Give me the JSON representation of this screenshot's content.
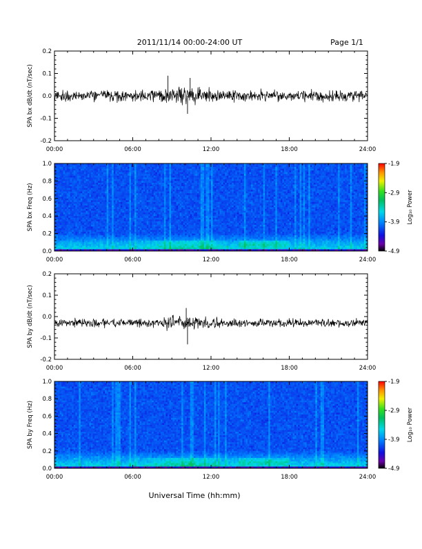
{
  "header": {
    "title": "2011/11/14  00:00-24:00 UT",
    "page": "Page 1/1"
  },
  "footer": {
    "xlabel": "Universal Time (hh:mm)"
  },
  "chart_data": [
    {
      "type": "line",
      "ylabel": "SPA bx dB/dt (nT/sec)",
      "xlim": [
        0,
        24
      ],
      "ylim": [
        -0.2,
        0.2
      ],
      "x_ticks": [
        "00:00",
        "06:00",
        "12:00",
        "18:00",
        "24:00"
      ],
      "y_ticks": [
        "0.2",
        "0.1",
        "0.0",
        "-0.1",
        "-0.2"
      ],
      "baseline": 0.0,
      "noise_amplitude": 0.025,
      "peaks": [
        {
          "x": 8.7,
          "y": 0.09
        },
        {
          "x": 10.4,
          "y": 0.08
        },
        {
          "x": 10.2,
          "y": -0.08
        }
      ]
    },
    {
      "type": "heatmap",
      "ylabel": "SPA bx Freq (Hz)",
      "xlim": [
        0,
        24
      ],
      "ylim": [
        0.0,
        1.0
      ],
      "x_ticks": [
        "00:00",
        "06:00",
        "12:00",
        "18:00",
        "24:00"
      ],
      "y_ticks": [
        "1.0",
        "0.8",
        "0.6",
        "0.4",
        "0.2",
        "0.0"
      ],
      "colorbar": {
        "label": "Log₁₀ Power",
        "range": [
          -4.9,
          -1.9
        ],
        "ticks": [
          "-1.9",
          "-2.9",
          "-3.9",
          "-4.9"
        ]
      }
    },
    {
      "type": "line",
      "ylabel": "SPA by dB/dt (nT/sec)",
      "xlim": [
        0,
        24
      ],
      "ylim": [
        -0.2,
        0.2
      ],
      "x_ticks": [
        "00:00",
        "06:00",
        "12:00",
        "18:00",
        "24:00"
      ],
      "y_ticks": [
        "0.2",
        "0.1",
        "0.0",
        "-0.1",
        "-0.2"
      ],
      "baseline": -0.03,
      "noise_amplitude": 0.02,
      "peaks": [
        {
          "x": 10.2,
          "y": -0.13
        },
        {
          "x": 10.1,
          "y": 0.04
        }
      ]
    },
    {
      "type": "heatmap",
      "ylabel": "SPA by Freq (Hz)",
      "xlim": [
        0,
        24
      ],
      "ylim": [
        0.0,
        1.0
      ],
      "x_ticks": [
        "00:00",
        "06:00",
        "12:00",
        "18:00",
        "24:00"
      ],
      "y_ticks": [
        "1.0",
        "0.8",
        "0.6",
        "0.4",
        "0.2",
        "0.0"
      ],
      "colorbar": {
        "label": "Log₁₀ Power",
        "range": [
          -4.9,
          -1.9
        ],
        "ticks": [
          "-1.9",
          "-2.9",
          "-3.9",
          "-4.9"
        ]
      }
    }
  ]
}
